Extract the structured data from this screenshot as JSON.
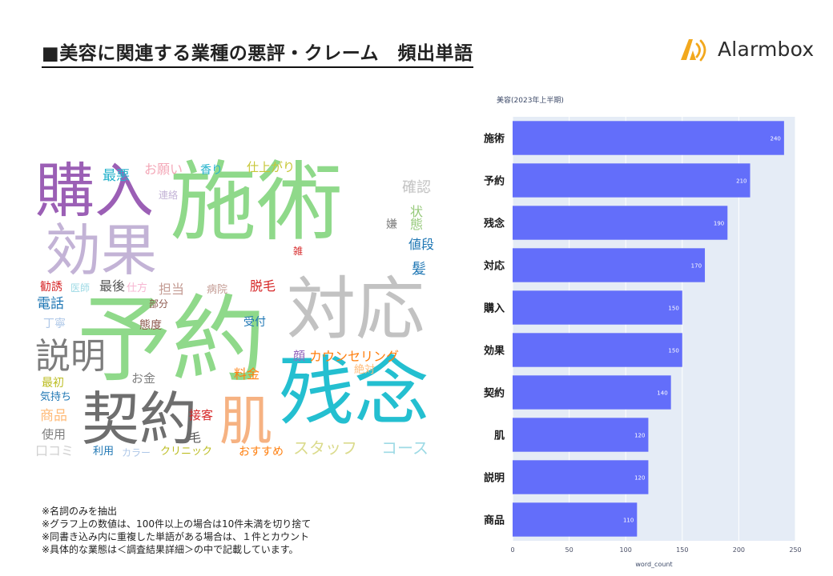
{
  "page": {
    "title": "■美容に関連する業種の悪評・クレーム　頻出単語"
  },
  "logo": {
    "text": "Alarmbox",
    "color": "#f2a81d"
  },
  "wordcloud": {
    "words": [
      {
        "text": "施術",
        "color": "#8fd98a"
      },
      {
        "text": "予約",
        "color": "#8fd98a"
      },
      {
        "text": "購入",
        "color": "#9b5fb5"
      },
      {
        "text": "効果",
        "color": "#c3b3d6"
      },
      {
        "text": "対応",
        "color": "#c2c2c2"
      },
      {
        "text": "残念",
        "color": "#24bfd0"
      },
      {
        "text": "契約",
        "color": "#6e6e6e"
      },
      {
        "text": "肌",
        "color": "#f6b282"
      },
      {
        "text": "説明",
        "color": "#7d7d7d"
      },
      {
        "text": "最悪",
        "color": "#27b3cc"
      },
      {
        "text": "お願い",
        "color": "#f4a8b8"
      },
      {
        "text": "香り",
        "color": "#27b3cc"
      },
      {
        "text": "仕上がり",
        "color": "#c7c738"
      },
      {
        "text": "連絡",
        "color": "#c3b3d6"
      },
      {
        "text": "確認",
        "color": "#c2c2c2"
      },
      {
        "text": "嫌",
        "color": "#7d7d7d"
      },
      {
        "text": "状態",
        "color": "#96c97a"
      },
      {
        "text": "値段",
        "color": "#1f77b4"
      },
      {
        "text": "雑",
        "color": "#d62728"
      },
      {
        "text": "髪",
        "color": "#1f77b4"
      },
      {
        "text": "勧誘",
        "color": "#d62728"
      },
      {
        "text": "医師",
        "color": "#9edae5"
      },
      {
        "text": "最後",
        "color": "#555555"
      },
      {
        "text": "仕方",
        "color": "#f7b6d2"
      },
      {
        "text": "担当",
        "color": "#c49c94"
      },
      {
        "text": "病院",
        "color": "#c49c94"
      },
      {
        "text": "脱毛",
        "color": "#d62728"
      },
      {
        "text": "電話",
        "color": "#1f77b4"
      },
      {
        "text": "部分",
        "color": "#8c564b"
      },
      {
        "text": "丁寧",
        "color": "#aec7e8"
      },
      {
        "text": "態度",
        "color": "#8c564b"
      },
      {
        "text": "受付",
        "color": "#1f77b4"
      },
      {
        "text": "顔",
        "color": "#9467bd"
      },
      {
        "text": "カウンセリング",
        "color": "#ff7f0e"
      },
      {
        "text": "料金",
        "color": "#ff7f0e"
      },
      {
        "text": "絶対",
        "color": "#ffbb78"
      },
      {
        "text": "お金",
        "color": "#7f7f7f"
      },
      {
        "text": "最初",
        "color": "#bcbd22"
      },
      {
        "text": "気持ち",
        "color": "#1f77b4"
      },
      {
        "text": "商品",
        "color": "#ffbb78"
      },
      {
        "text": "接客",
        "color": "#d62728"
      },
      {
        "text": "使用",
        "color": "#7f7f7f"
      },
      {
        "text": "毛",
        "color": "#555555"
      },
      {
        "text": "口コミ",
        "color": "#d0d0d0"
      },
      {
        "text": "利用",
        "color": "#1f77b4"
      },
      {
        "text": "カラー",
        "color": "#aec7e8"
      },
      {
        "text": "クリニック",
        "color": "#bcbd22"
      },
      {
        "text": "おすすめ",
        "color": "#ff7f0e"
      },
      {
        "text": "スタッフ",
        "color": "#dbdb8d"
      },
      {
        "text": "コース",
        "color": "#9edae5"
      }
    ]
  },
  "notes": [
    "※名詞のみを抽出",
    "※グラフ上の数値は、100件以上の場合は10件未満を切り捨て",
    "※同書き込み内に重複した単語がある場合は、１件とカウント",
    "※具体的な業態は＜調査結果詳細＞の中で記載しています。"
  ],
  "chart_data": {
    "type": "bar",
    "orientation": "horizontal",
    "title": "美容(2023年上半期)",
    "categories": [
      "施術",
      "予約",
      "残念",
      "対応",
      "購入",
      "効果",
      "契約",
      "肌",
      "説明",
      "商品"
    ],
    "values": [
      240,
      210,
      190,
      170,
      150,
      150,
      140,
      120,
      120,
      110
    ],
    "xlabel": "word_count",
    "ylabel": "",
    "xlim": [
      0,
      250
    ],
    "xticks": [
      0,
      50,
      100,
      150,
      200,
      250
    ],
    "grid": true,
    "bar_color": "#636efa",
    "plot_bg": "#e5ecf6"
  }
}
